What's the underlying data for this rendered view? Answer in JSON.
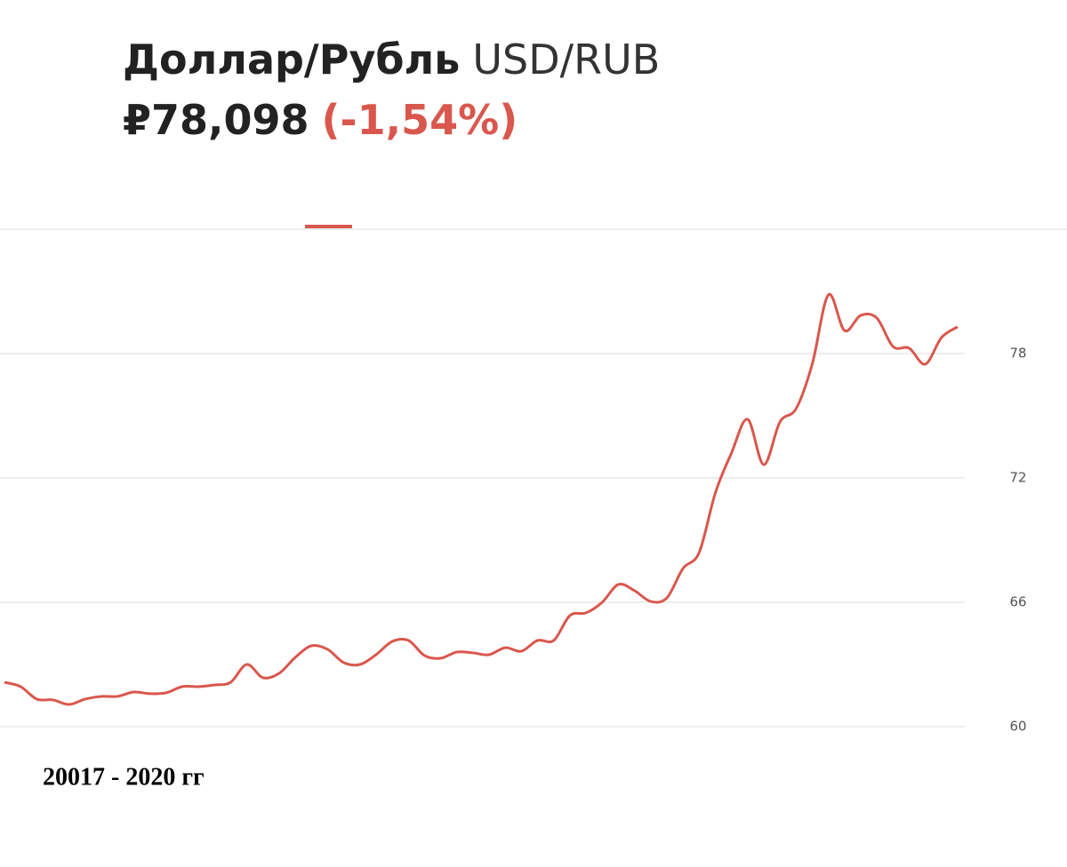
{
  "chart_data": {
    "type": "line",
    "title": "Доллар/Рубль",
    "subtitle": "USD/RUB",
    "price": "₽78,098",
    "change": "(-1,54%)",
    "caption": "20017 - 2020 гг",
    "color": "#d9574d",
    "values": [
      62.14,
      61.93,
      61.33,
      61.29,
      61.07,
      61.33,
      61.46,
      61.46,
      61.67,
      61.59,
      61.63,
      61.93,
      61.93,
      62.01,
      62.14,
      63.0,
      62.36,
      62.57,
      63.34,
      63.9,
      63.73,
      63.09,
      63.0,
      63.47,
      64.11,
      64.16,
      63.43,
      63.3,
      63.6,
      63.56,
      63.47,
      63.81,
      63.64,
      64.16,
      64.16,
      65.36,
      65.49,
      66.0,
      66.86,
      66.56,
      66.04,
      66.21,
      67.63,
      68.4,
      71.27,
      73.2,
      74.83,
      72.64,
      74.7,
      75.34,
      77.49,
      80.83,
      79.11,
      79.84,
      79.71,
      78.34,
      78.26,
      77.49,
      78.77,
      79.29
    ],
    "ylim": [
      60,
      84
    ],
    "yticks": [
      60,
      66,
      72,
      78
    ],
    "grid": true
  }
}
